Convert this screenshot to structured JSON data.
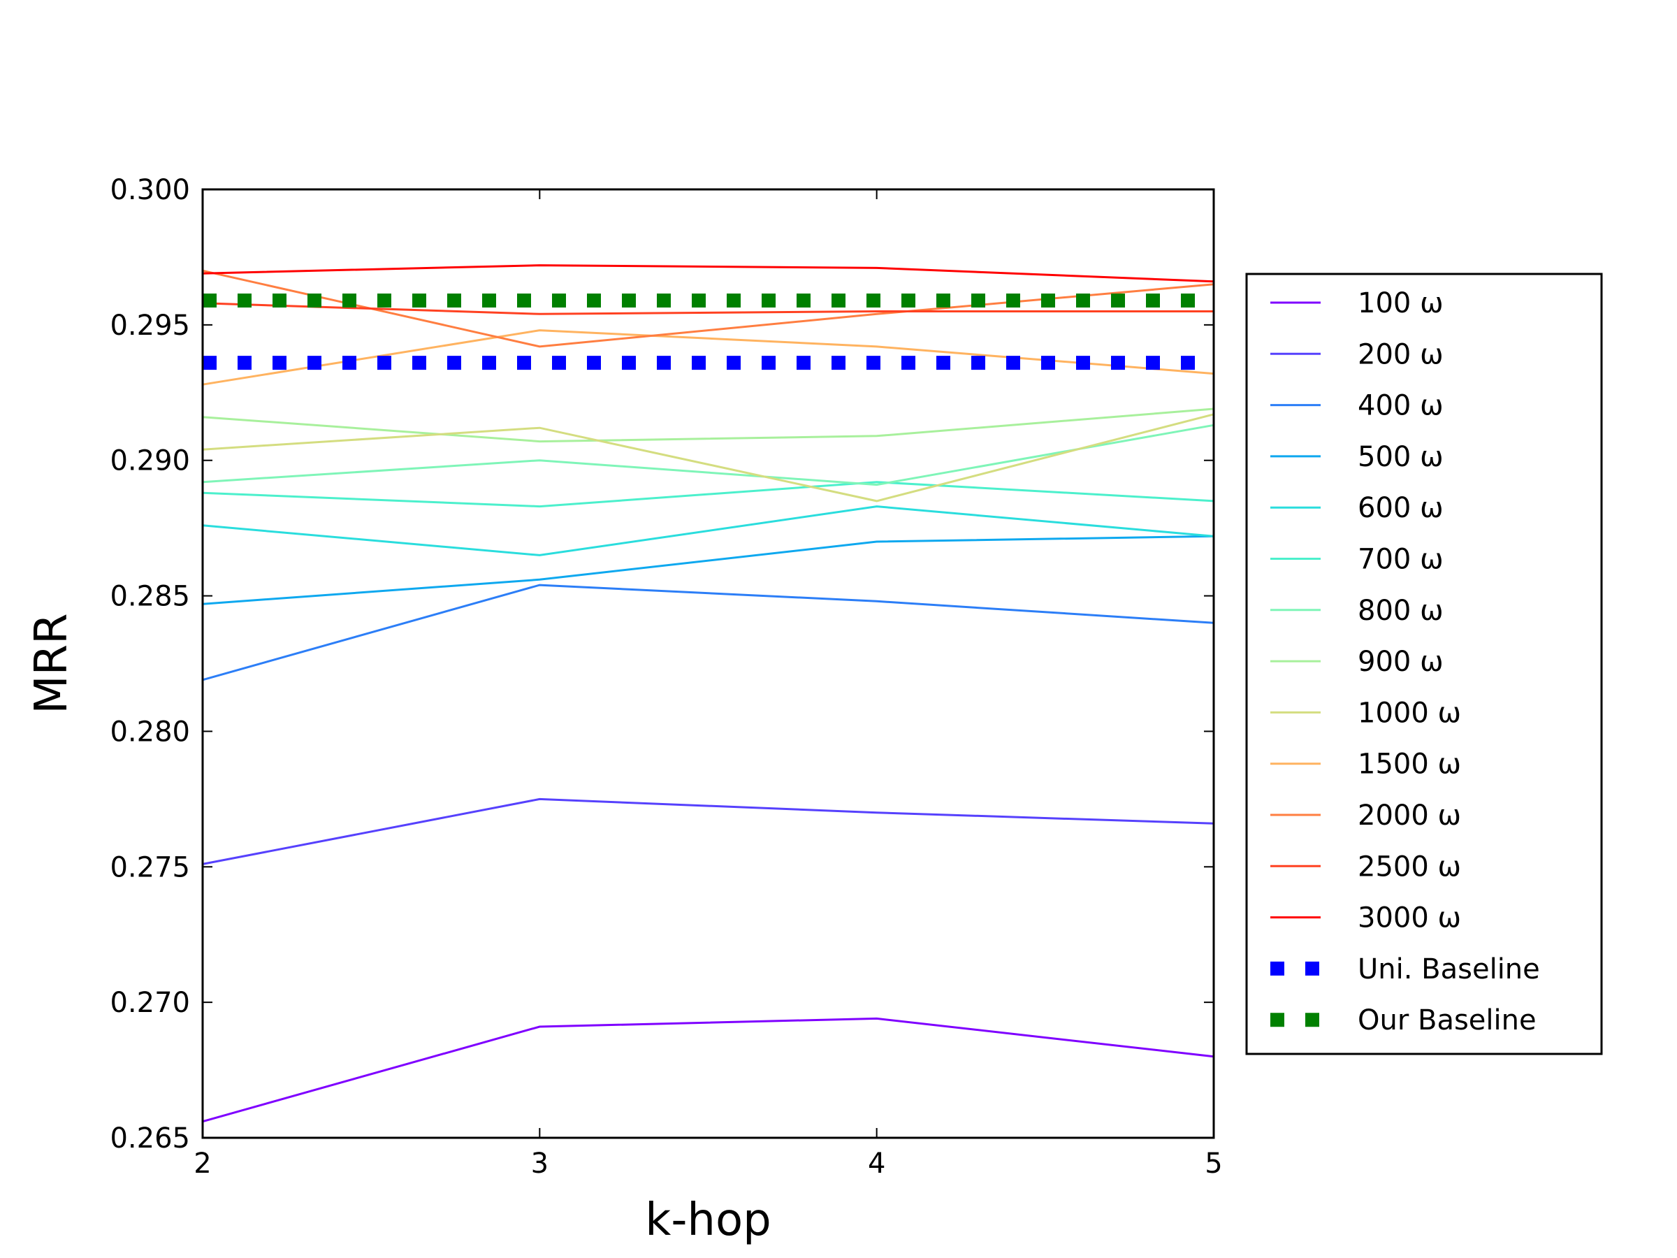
{
  "chart_data": {
    "type": "line",
    "title": "",
    "xlabel": "k-hop",
    "ylabel": "MRR",
    "x": [
      2,
      3,
      4,
      5
    ],
    "xlim": [
      2,
      5
    ],
    "ylim": [
      0.265,
      0.3
    ],
    "x_ticks": [
      "2",
      "3",
      "4",
      "5"
    ],
    "y_ticks": [
      "0.265",
      "0.270",
      "0.275",
      "0.280",
      "0.285",
      "0.290",
      "0.295",
      "0.300"
    ],
    "grid": false,
    "legend_position": "right, outside plot",
    "series": [
      {
        "name": "100 ω",
        "color": "#7f00ff",
        "style": "solid",
        "values": [
          0.2656,
          0.2691,
          0.2694,
          0.268
        ]
      },
      {
        "name": "200 ω",
        "color": "#5641fd",
        "style": "solid",
        "values": [
          0.2751,
          0.2775,
          0.277,
          0.2766
        ]
      },
      {
        "name": "400 ω",
        "color": "#2c7ef7",
        "style": "solid",
        "values": [
          0.2819,
          0.2854,
          0.2848,
          0.284
        ]
      },
      {
        "name": "500 ω",
        "color": "#0ea8ef",
        "style": "solid",
        "values": [
          0.2847,
          0.2856,
          0.287,
          0.2872
        ]
      },
      {
        "name": "600 ω",
        "color": "#2adddd",
        "style": "solid",
        "values": [
          0.2876,
          0.2865,
          0.2883,
          0.2872
        ]
      },
      {
        "name": "700 ω",
        "color": "#4cf0cc",
        "style": "solid",
        "values": [
          0.2888,
          0.2883,
          0.2892,
          0.2885
        ]
      },
      {
        "name": "800 ω",
        "color": "#7ff5b8",
        "style": "solid",
        "values": [
          0.2892,
          0.29,
          0.2891,
          0.2913
        ]
      },
      {
        "name": "900 ω",
        "color": "#a8f09c",
        "style": "solid",
        "values": [
          0.2916,
          0.2907,
          0.2909,
          0.2919
        ]
      },
      {
        "name": "1000 ω",
        "color": "#d4dd80",
        "style": "solid",
        "values": [
          0.2904,
          0.2912,
          0.2885,
          0.2917
        ]
      },
      {
        "name": "1500 ω",
        "color": "#ffb360",
        "style": "solid",
        "values": [
          0.2928,
          0.2948,
          0.2942,
          0.2932
        ]
      },
      {
        "name": "2000 ω",
        "color": "#ff7e41",
        "style": "solid",
        "values": [
          0.297,
          0.2942,
          0.2954,
          0.2965
        ]
      },
      {
        "name": "2500 ω",
        "color": "#ff4121",
        "style": "solid",
        "values": [
          0.2958,
          0.2954,
          0.2955,
          0.2955
        ]
      },
      {
        "name": "3000 ω",
        "color": "#ff0000",
        "style": "solid",
        "values": [
          0.2969,
          0.2972,
          0.2971,
          0.2966
        ]
      },
      {
        "name": "Uni. Baseline",
        "color": "#0000ff",
        "style": "dotted",
        "values": [
          0.2936,
          0.2936,
          0.2936,
          0.2936
        ]
      },
      {
        "name": "Our Baseline",
        "color": "#008000",
        "style": "dotted",
        "values": [
          0.2959,
          0.2959,
          0.2959,
          0.2959
        ]
      }
    ]
  }
}
